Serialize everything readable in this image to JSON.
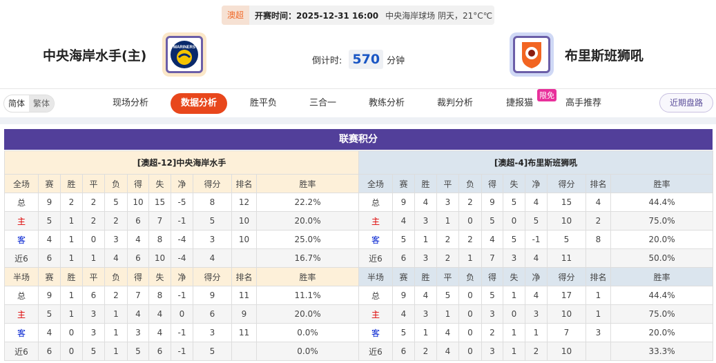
{
  "match": {
    "league": "澳超",
    "time_label": "开赛时间：2025-12-31 16:00",
    "venue": "中央海岸球场  阴天，21°C℃"
  },
  "home": {
    "name": "中央海岸水手(主)",
    "logo_text": "MARINERS"
  },
  "away": {
    "name": "布里斯班狮吼"
  },
  "countdown": {
    "label": "倒计时:",
    "value": "570",
    "unit": "分钟"
  },
  "lang": {
    "simplified": "简体",
    "traditional": "繁体"
  },
  "tabs": [
    "现场分析",
    "数据分析",
    "胜平负",
    "三合一",
    "教练分析",
    "裁判分析",
    "捷报猫",
    "高手推荐"
  ],
  "active_tab": "数据分析",
  "badge": "限免",
  "recent_button": "近期盘路",
  "colors": {
    "accent": "#e8471c",
    "title_bg": "#523f9a",
    "home_red": "#dd0000",
    "away_blue": "#0020d0"
  },
  "standings": {
    "title": "联赛积分",
    "home": {
      "header": "[澳超-12]中央海岸水手",
      "full_columns": [
        "全场",
        "赛",
        "胜",
        "平",
        "负",
        "得",
        "失",
        "净",
        "得分",
        "排名",
        "胜率"
      ],
      "full": [
        [
          "总",
          "9",
          "2",
          "2",
          "5",
          "10",
          "15",
          "-5",
          "8",
          "12",
          "22.2%"
        ],
        [
          "主",
          "5",
          "1",
          "2",
          "2",
          "6",
          "7",
          "-1",
          "5",
          "10",
          "20.0%"
        ],
        [
          "客",
          "4",
          "1",
          "0",
          "3",
          "4",
          "8",
          "-4",
          "3",
          "10",
          "25.0%"
        ],
        [
          "近6",
          "6",
          "1",
          "1",
          "4",
          "6",
          "10",
          "-4",
          "4",
          "",
          "16.7%"
        ]
      ],
      "half_columns": [
        "半场",
        "赛",
        "胜",
        "平",
        "负",
        "得",
        "失",
        "净",
        "得分",
        "排名",
        "胜率"
      ],
      "half": [
        [
          "总",
          "9",
          "1",
          "6",
          "2",
          "7",
          "8",
          "-1",
          "9",
          "11",
          "11.1%"
        ],
        [
          "主",
          "5",
          "1",
          "3",
          "1",
          "4",
          "4",
          "0",
          "6",
          "9",
          "20.0%"
        ],
        [
          "客",
          "4",
          "0",
          "3",
          "1",
          "3",
          "4",
          "-1",
          "3",
          "11",
          "0.0%"
        ],
        [
          "近6",
          "6",
          "0",
          "5",
          "1",
          "5",
          "6",
          "-1",
          "5",
          "",
          "0.0%"
        ]
      ]
    },
    "away": {
      "header": "[澳超-4]布里斯班狮吼",
      "full_columns": [
        "全场",
        "赛",
        "胜",
        "平",
        "负",
        "得",
        "失",
        "净",
        "得分",
        "排名",
        "胜率"
      ],
      "full": [
        [
          "总",
          "9",
          "4",
          "3",
          "2",
          "9",
          "5",
          "4",
          "15",
          "4",
          "44.4%"
        ],
        [
          "主",
          "4",
          "3",
          "1",
          "0",
          "5",
          "0",
          "5",
          "10",
          "2",
          "75.0%"
        ],
        [
          "客",
          "5",
          "1",
          "2",
          "2",
          "4",
          "5",
          "-1",
          "5",
          "8",
          "20.0%"
        ],
        [
          "近6",
          "6",
          "3",
          "2",
          "1",
          "7",
          "3",
          "4",
          "11",
          "",
          "50.0%"
        ]
      ],
      "half_columns": [
        "半场",
        "赛",
        "胜",
        "平",
        "负",
        "得",
        "失",
        "净",
        "得分",
        "排名",
        "胜率"
      ],
      "half": [
        [
          "总",
          "9",
          "4",
          "5",
          "0",
          "5",
          "1",
          "4",
          "17",
          "1",
          "44.4%"
        ],
        [
          "主",
          "4",
          "3",
          "1",
          "0",
          "3",
          "0",
          "3",
          "10",
          "1",
          "75.0%"
        ],
        [
          "客",
          "5",
          "1",
          "4",
          "0",
          "2",
          "1",
          "1",
          "7",
          "3",
          "20.0%"
        ],
        [
          "近6",
          "6",
          "2",
          "4",
          "0",
          "3",
          "1",
          "2",
          "10",
          "",
          "33.3%"
        ]
      ]
    }
  }
}
